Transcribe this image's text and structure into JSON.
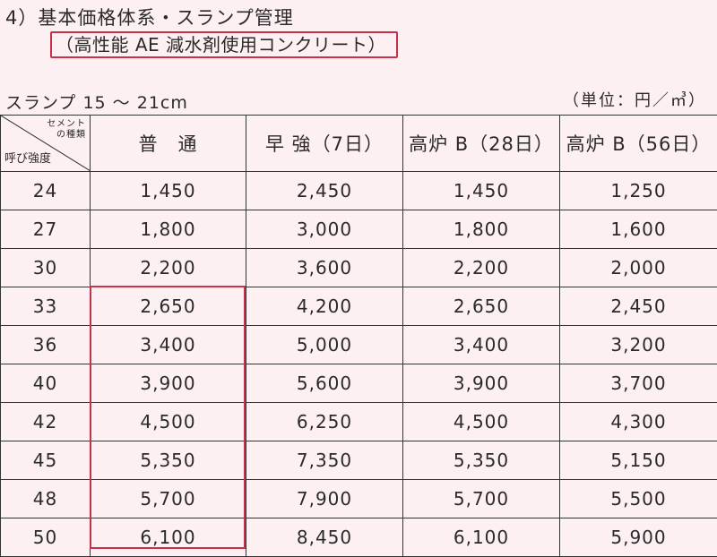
{
  "title": "4）基本価格体系・スランプ管理",
  "subtitle": "（高性能 AE 減水剤使用コンクリート）",
  "slump_label": "スランプ 15 ～ 21cm",
  "unit_label": "（単位：円／㎥）",
  "table": {
    "corner_top_line1": "セメント",
    "corner_top_line2": "の種類",
    "corner_bottom": "呼び強度",
    "columns": [
      "普　通",
      "早 強（7日）",
      "高炉 B（28日）",
      "高炉 B（56日）"
    ],
    "rows": [
      [
        "24",
        "1,450",
        "2,450",
        "1,450",
        "1,250"
      ],
      [
        "27",
        "1,800",
        "3,000",
        "1,800",
        "1,600"
      ],
      [
        "30",
        "2,200",
        "3,600",
        "2,200",
        "2,000"
      ],
      [
        "33",
        "2,650",
        "4,200",
        "2,650",
        "2,450"
      ],
      [
        "36",
        "3,400",
        "5,000",
        "3,400",
        "3,200"
      ],
      [
        "40",
        "3,900",
        "5,600",
        "3,900",
        "3,700"
      ],
      [
        "42",
        "4,500",
        "6,250",
        "4,500",
        "4,300"
      ],
      [
        "45",
        "5,350",
        "7,350",
        "5,350",
        "5,150"
      ],
      [
        "48",
        "5,700",
        "7,900",
        "5,700",
        "5,500"
      ],
      [
        "50",
        "6,100",
        "8,450",
        "6,100",
        "5,900"
      ]
    ]
  },
  "colors": {
    "accent_red": "#c8304a",
    "background": "#fdf0f2"
  }
}
